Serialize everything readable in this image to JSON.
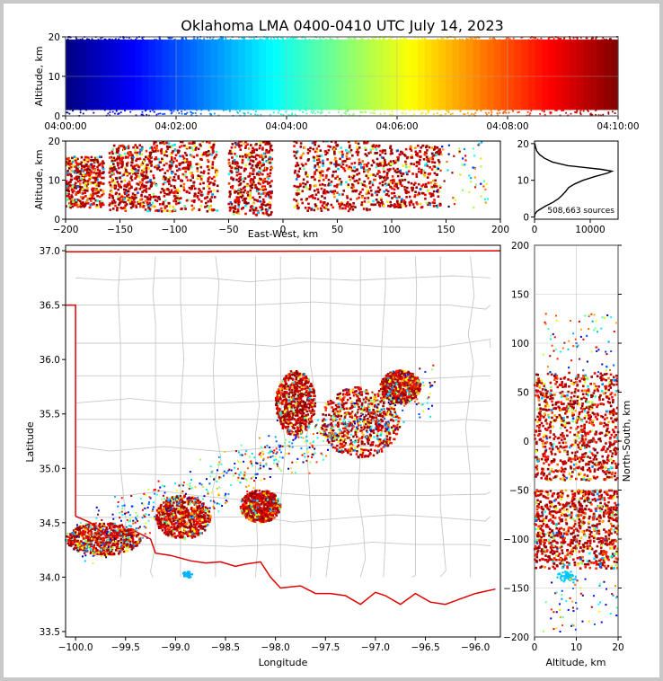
{
  "title": "Oklahoma LMA 0400-0410 UTC July 14, 2023",
  "colors": {
    "boundary": "#e00000",
    "counties": "#c8c8c8",
    "altitude_curve": "#000000"
  },
  "chart_data": [
    {
      "id": "time-height",
      "type": "scatter",
      "ylabel": "Altitude, km",
      "ylim": [
        0,
        20
      ],
      "yticks": [
        0,
        10,
        20
      ],
      "xlim": [
        "04:00:00",
        "04:10:00"
      ],
      "xticks": [
        "04:00:00",
        "04:02:00",
        "04:04:00",
        "04:06:00",
        "04:08:00",
        "04:10:00"
      ],
      "colormap": "jet (by time)",
      "grid": true
    },
    {
      "id": "ew-height",
      "type": "scatter",
      "xlabel": "East-West, km",
      "ylabel": "Altitude, km",
      "xlim": [
        -200,
        200
      ],
      "xticks": [
        -200,
        -150,
        -100,
        -50,
        0,
        50,
        100,
        150,
        200
      ],
      "ylim": [
        0,
        20
      ],
      "yticks": [
        0,
        10,
        20
      ],
      "clusters": [
        {
          "x": [
            -200,
            -165
          ],
          "y": [
            3,
            16
          ]
        },
        {
          "x": [
            -160,
            -120
          ],
          "y": [
            2,
            19
          ]
        },
        {
          "x": [
            -120,
            -60
          ],
          "y": [
            2,
            20
          ]
        },
        {
          "x": [
            -50,
            -10
          ],
          "y": [
            1,
            20
          ]
        },
        {
          "x": [
            10,
            80
          ],
          "y": [
            2,
            20
          ]
        },
        {
          "x": [
            80,
            145
          ],
          "y": [
            3,
            19
          ]
        }
      ]
    },
    {
      "id": "altitude-histogram",
      "type": "line",
      "xlim": [
        0,
        15000
      ],
      "xticks": [
        0,
        10000
      ],
      "ylim": [
        0,
        20
      ],
      "yticks": [
        0,
        10,
        20
      ],
      "annotation": "508,663 sources",
      "profile": [
        [
          0,
          0
        ],
        [
          0.8,
          80
        ],
        [
          1.5,
          400
        ],
        [
          2,
          900
        ],
        [
          3,
          2000
        ],
        [
          4,
          3300
        ],
        [
          5,
          4300
        ],
        [
          6,
          5000
        ],
        [
          7,
          5600
        ],
        [
          8,
          6100
        ],
        [
          9,
          7200
        ],
        [
          10,
          8700
        ],
        [
          11,
          10800
        ],
        [
          12,
          13200
        ],
        [
          12.5,
          13900
        ],
        [
          13,
          12000
        ],
        [
          13.5,
          9000
        ],
        [
          14,
          6000
        ],
        [
          15,
          3200
        ],
        [
          16,
          1800
        ],
        [
          17,
          900
        ],
        [
          18,
          400
        ],
        [
          19,
          180
        ],
        [
          20,
          60
        ]
      ]
    },
    {
      "id": "plan-view",
      "type": "scatter",
      "xlabel": "Longitude",
      "ylabel": "Latitude",
      "xlim": [
        -100.1,
        -95.75
      ],
      "xticks": [
        -100.0,
        -99.5,
        -99.0,
        -98.5,
        -98.0,
        -97.5,
        -97.0,
        -96.5,
        -96.0
      ],
      "ylim": [
        33.45,
        37.05
      ],
      "yticks": [
        33.5,
        34.0,
        34.5,
        35.0,
        35.5,
        36.0,
        36.5,
        37.0
      ],
      "storms": [
        {
          "lon": [
            -97.55,
            -96.75
          ],
          "lat": [
            35.1,
            35.75
          ]
        },
        {
          "lon": [
            -96.95,
            -96.55
          ],
          "lat": [
            35.6,
            35.9
          ]
        },
        {
          "lon": [
            -99.2,
            -98.65
          ],
          "lat": [
            34.35,
            34.75
          ]
        },
        {
          "lon": [
            -98.35,
            -97.95
          ],
          "lat": [
            34.5,
            34.8
          ]
        },
        {
          "lon": [
            -100.1,
            -99.35
          ],
          "lat": [
            34.2,
            34.5
          ]
        },
        {
          "lon": [
            -98.0,
            -97.6
          ],
          "lat": [
            35.3,
            35.9
          ]
        }
      ]
    },
    {
      "id": "ns-height",
      "type": "scatter",
      "xlabel": "Altitude, km",
      "ylabel": "North-South, km",
      "xlim": [
        0,
        20
      ],
      "xticks": [
        0,
        10,
        20
      ],
      "ylim": [
        -200,
        200
      ],
      "yticks": [
        -200,
        -150,
        -100,
        -50,
        0,
        50,
        100,
        150,
        200
      ],
      "clusters": [
        {
          "y": [
            -130,
            -50
          ],
          "x": [
            0,
            20
          ]
        },
        {
          "y": [
            -40,
            70
          ],
          "x": [
            0,
            20
          ]
        }
      ]
    }
  ]
}
